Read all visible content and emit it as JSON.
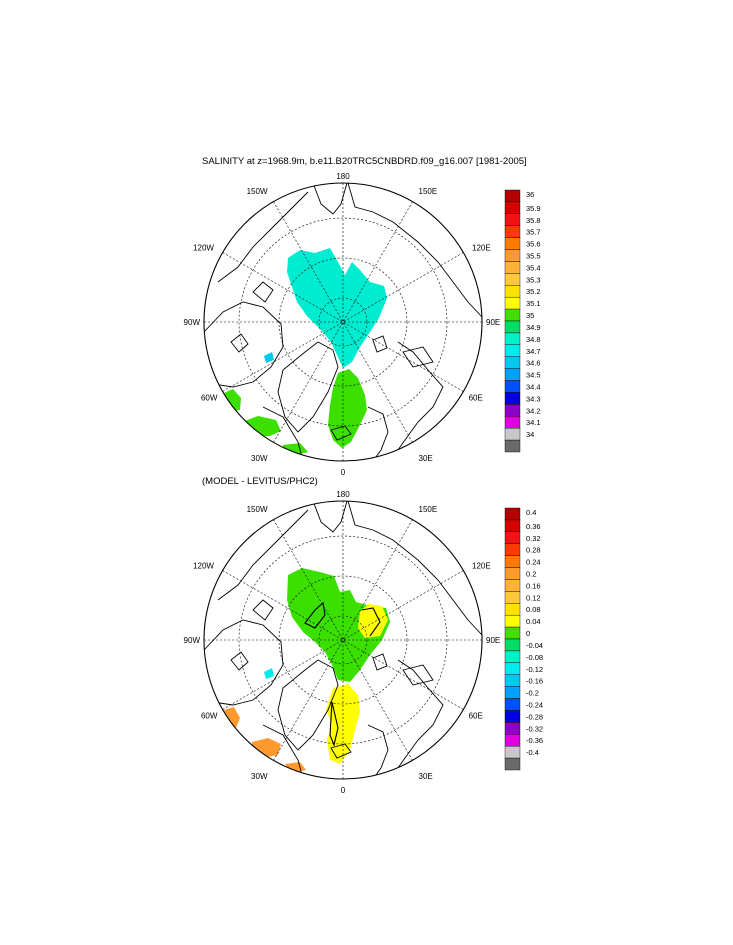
{
  "panels": [
    {
      "title": "SALINITY at z=1968.9m, b.e11.B20TRC5CNBDRD.f09_g16.007 [1981-2005]",
      "lon_labels": {
        "top": "180",
        "bottom": "0",
        "left": "90W",
        "right": "90E",
        "tl1": "150W",
        "tl2": "120W",
        "tr1": "150E",
        "tr2": "120E",
        "bl1": "60W",
        "bl2": "30W",
        "br1": "60E",
        "br2": "30E"
      },
      "colorbar": {
        "labels": [
          "36",
          "35.9",
          "35.8",
          "35.7",
          "35.6",
          "35.5",
          "35.4",
          "35.3",
          "35.2",
          "35.1",
          "35",
          "34.9",
          "34.8",
          "34.7",
          "34.6",
          "34.5",
          "34.4",
          "34.3",
          "34.2",
          "34.1",
          "34"
        ]
      }
    },
    {
      "title": "(MODEL - LEVITUS/PHC2)",
      "lon_labels": {
        "top": "180",
        "bottom": "0",
        "left": "90W",
        "right": "90E",
        "tl1": "150W",
        "tl2": "120W",
        "tr1": "150E",
        "tr2": "120E",
        "bl1": "60W",
        "bl2": "30W",
        "br1": "60E",
        "br2": "30E"
      },
      "colorbar": {
        "labels": [
          "0.4",
          "0.36",
          "0.32",
          "0.28",
          "0.24",
          "0.2",
          "0.16",
          "0.12",
          "0.08",
          "0.04",
          "0",
          "-0.04",
          "-0.08",
          "-0.12",
          "-0.16",
          "-0.2",
          "-0.24",
          "-0.28",
          "-0.32",
          "-0.36",
          "-0.4"
        ]
      }
    }
  ],
  "colorbar_colors": [
    "#b40000",
    "#d50000",
    "#f21414",
    "#ff3a00",
    "#ff7a00",
    "#ff9b2e",
    "#ffb13a",
    "#ffc83c",
    "#ffe100",
    "#ffff00",
    "#44dd00",
    "#00dd66",
    "#00f0c8",
    "#00ecec",
    "#00c8f0",
    "#00a0ff",
    "#0050ff",
    "#0000e0",
    "#8c00c8",
    "#e000e0",
    "#c8c8c8",
    "#6a6a6a"
  ]
}
